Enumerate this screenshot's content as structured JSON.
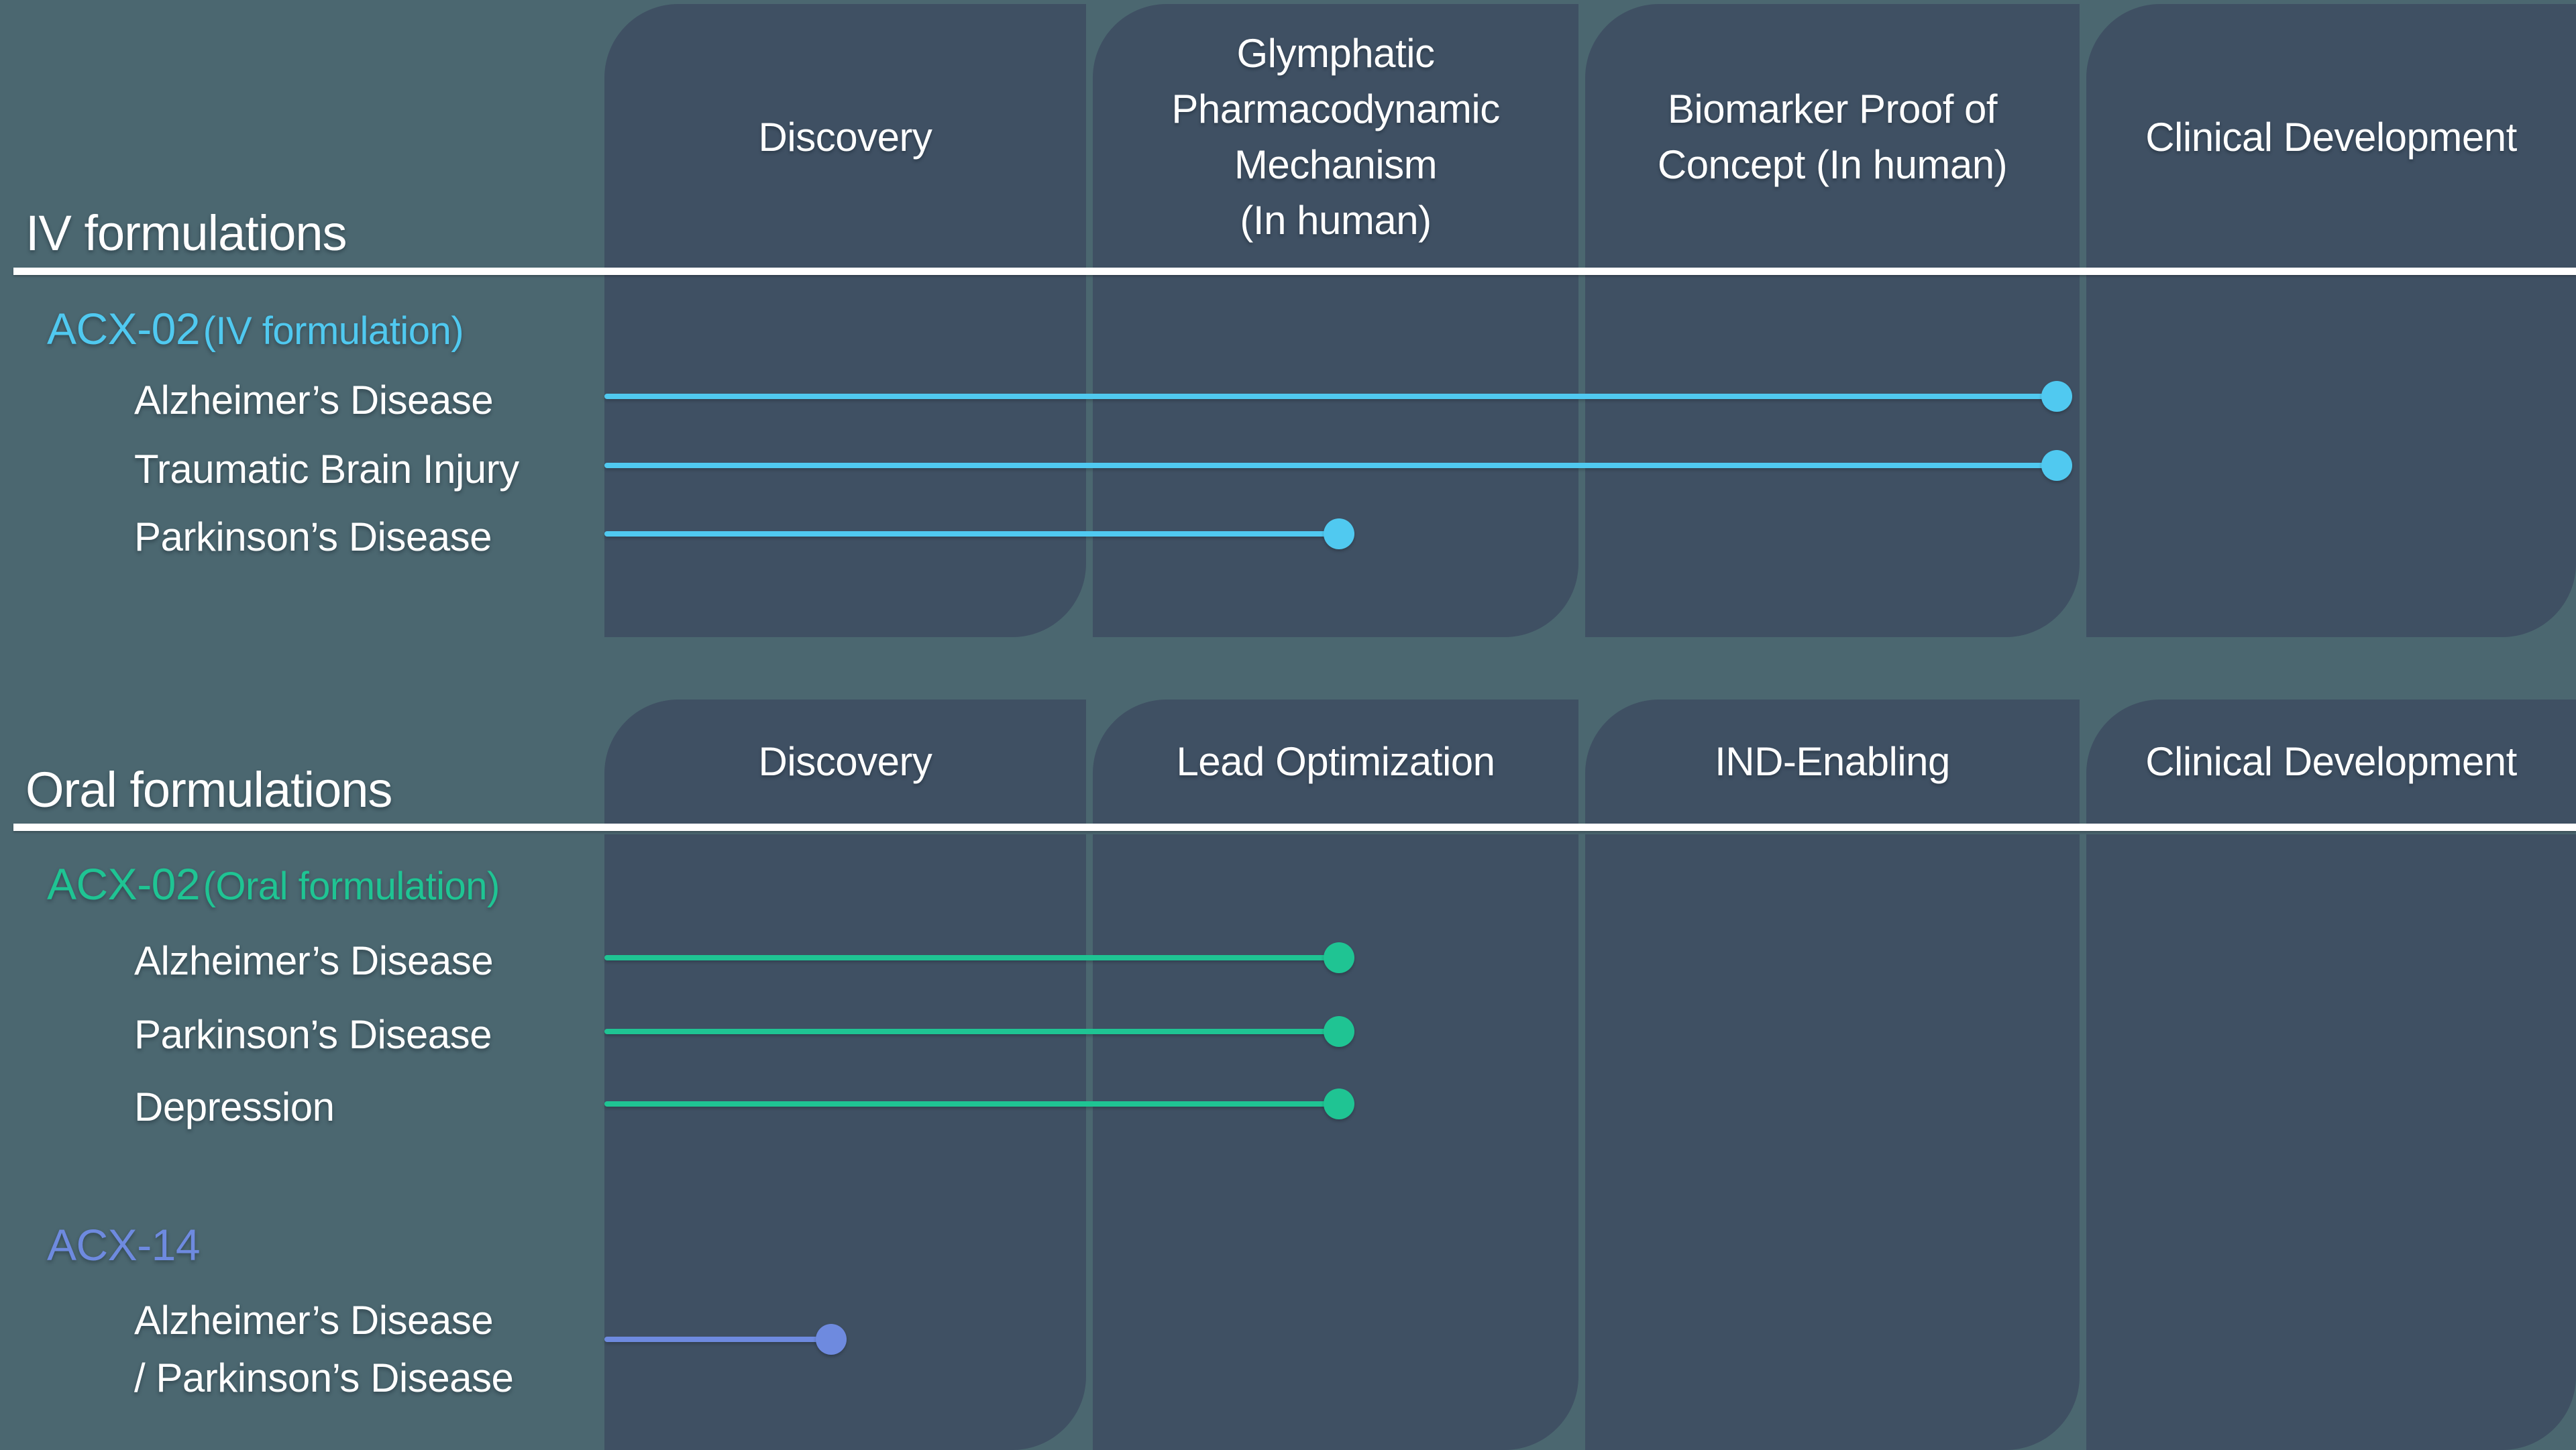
{
  "colors": {
    "background": "#4B6770",
    "panel": "#3F5063",
    "divider": "#FFFFFF",
    "text": "#FFFFFF",
    "iv_accent": "#50C9F0",
    "oral_accent": "#1FC493",
    "acx14_accent": "#6E8ADF"
  },
  "sections": [
    {
      "id": "iv",
      "title": "IV formulations",
      "columns": [
        "Discovery",
        "Glymphatic\nPharmacodynamic\nMechanism\n(In human)",
        "Biomarker Proof  of\nConcept (In human)",
        "Clinical Development"
      ],
      "programs": [
        {
          "name": "ACX-02",
          "suffix": "(IV formulation)",
          "color": "#50C9F0",
          "rows": [
            {
              "label": "Alzheimer’s Disease",
              "y": 591,
              "x_start": 901,
              "x_end": 3066,
              "label_top": 561
            },
            {
              "label": "Traumatic Brain Injury",
              "y": 694,
              "x_start": 901,
              "x_end": 3066,
              "label_top": 664
            },
            {
              "label": "Parkinson’s Disease",
              "y": 796,
              "x_start": 901,
              "x_end": 1996,
              "label_top": 765
            }
          ]
        }
      ]
    },
    {
      "id": "oral",
      "title": "Oral formulations",
      "columns": [
        "Discovery",
        "Lead Optimization",
        "IND-Enabling",
        "Clinical Development"
      ],
      "programs": [
        {
          "name": "ACX-02",
          "suffix": "(Oral formulation)",
          "color": "#1FC493",
          "rows": [
            {
              "label": "Alzheimer’s Disease",
              "y": 1428,
              "x_start": 901,
              "x_end": 1996,
              "label_top": 1397
            },
            {
              "label": "Parkinson’s Disease",
              "y": 1538,
              "x_start": 901,
              "x_end": 1996,
              "label_top": 1507
            },
            {
              "label": "Depression",
              "y": 1646,
              "x_start": 901,
              "x_end": 1996,
              "label_top": 1615
            }
          ]
        },
        {
          "name": "ACX-14",
          "suffix": "",
          "color": "#6E8ADF",
          "rows": [
            {
              "label": "Alzheimer’s Disease\n/ Parkinson’s Disease",
              "y": 1997,
              "x_start": 901,
              "x_end": 1239,
              "label_top": 1926
            }
          ]
        }
      ]
    }
  ],
  "chart_data": {
    "type": "bar",
    "orientation": "horizontal",
    "title": "Drug development pipeline progress",
    "progress_units": "stage index (1.0 = end of first stage column)",
    "charts": [
      {
        "group": "IV formulations",
        "stages": [
          "Discovery",
          "Glymphatic Pharmacodynamic Mechanism (In human)",
          "Biomarker Proof of Concept (In human)",
          "Clinical Development"
        ],
        "series": [
          {
            "program": "ACX-02 (IV formulation)",
            "rows": [
              {
                "indication": "Alzheimer’s Disease",
                "progress_stages": 2.95
              },
              {
                "indication": "Traumatic Brain Injury",
                "progress_stages": 2.95
              },
              {
                "indication": "Parkinson’s Disease",
                "progress_stages": 1.5
              }
            ]
          }
        ]
      },
      {
        "group": "Oral formulations",
        "stages": [
          "Discovery",
          "Lead Optimization",
          "IND-Enabling",
          "Clinical Development"
        ],
        "series": [
          {
            "program": "ACX-02 (Oral formulation)",
            "rows": [
              {
                "indication": "Alzheimer’s Disease",
                "progress_stages": 1.5
              },
              {
                "indication": "Parkinson’s Disease",
                "progress_stages": 1.5
              },
              {
                "indication": "Depression",
                "progress_stages": 1.5
              }
            ]
          },
          {
            "program": "ACX-14",
            "rows": [
              {
                "indication": "Alzheimer’s Disease / Parkinson’s Disease",
                "progress_stages": 0.47
              }
            ]
          }
        ]
      }
    ]
  }
}
